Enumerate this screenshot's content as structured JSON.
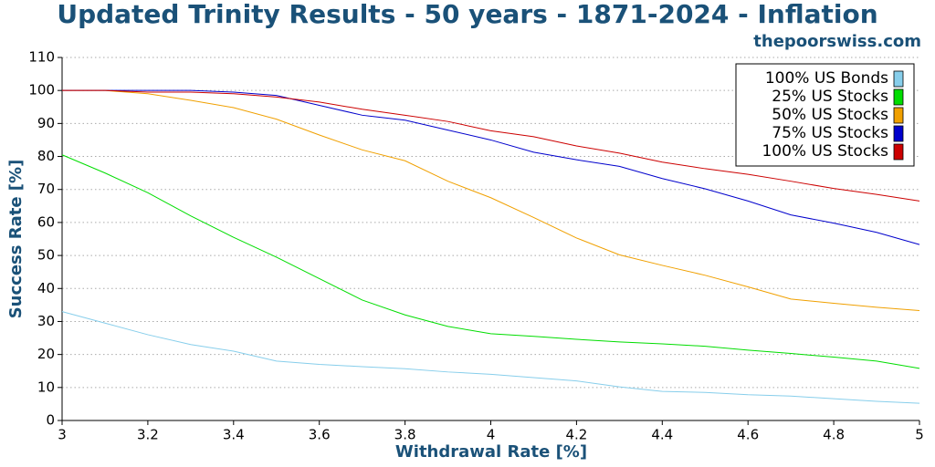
{
  "chart_data": {
    "type": "line",
    "title": "Updated Trinity Results - 50 years - 1871-2024 - Inflation",
    "subtitle": "thepoorswiss.com",
    "x_label": "Withdrawal Rate [%]",
    "y_label": "Success Rate [%]",
    "x": [
      3.0,
      3.1,
      3.2,
      3.3,
      3.4,
      3.5,
      3.6,
      3.7,
      3.8,
      3.9,
      4.0,
      4.1,
      4.2,
      4.3,
      4.4,
      4.5,
      4.6,
      4.7,
      4.8,
      4.9,
      5.0
    ],
    "series": [
      {
        "name": "100% US Bonds",
        "color": "#87ceeb",
        "values": [
          33,
          29.5,
          26,
          23,
          21,
          18,
          17,
          16.3,
          15.7,
          14.7,
          14,
          13,
          12,
          10.2,
          8.8,
          8.5,
          7.8,
          7.4,
          6.6,
          5.8,
          5.2
        ]
      },
      {
        "name": "25% US Stocks",
        "color": "#00dd00",
        "values": [
          80.5,
          75,
          69,
          62,
          55.5,
          49.5,
          43,
          36.5,
          32,
          28.5,
          26.3,
          25.5,
          24.6,
          23.8,
          23.2,
          22.5,
          21.3,
          20.3,
          19.2,
          18,
          15.8
        ]
      },
      {
        "name": "50% US Stocks",
        "color": "#f0a000",
        "values": [
          100,
          100,
          99,
          97,
          94.8,
          91.3,
          86.5,
          82,
          78.7,
          72.5,
          67.5,
          61.5,
          55.3,
          50.2,
          47,
          44,
          40.5,
          36.8,
          35.5,
          34.3,
          33.3
        ]
      },
      {
        "name": "75% US Stocks",
        "color": "#0000cc",
        "values": [
          100,
          100,
          100,
          100,
          99.5,
          98.5,
          95.5,
          92.5,
          91,
          88,
          85,
          81.3,
          79,
          77,
          73.3,
          70.2,
          66.5,
          62.3,
          59.8,
          57,
          53.3
        ]
      },
      {
        "name": "100% US Stocks",
        "color": "#cc0000",
        "values": [
          100,
          100,
          99.5,
          99.5,
          99,
          98,
          96.5,
          94.3,
          92.5,
          90.6,
          87.8,
          86,
          83.2,
          81,
          78.3,
          76.3,
          74.6,
          72.5,
          70.3,
          68.5,
          66.5
        ]
      }
    ],
    "xlim": [
      3,
      5
    ],
    "xticks": [
      3,
      3.2,
      3.4,
      3.6,
      3.8,
      4,
      4.2,
      4.4,
      4.6,
      4.8,
      5
    ],
    "ylim": [
      0,
      110
    ],
    "yticks": [
      0,
      10,
      20,
      30,
      40,
      50,
      60,
      70,
      80,
      90,
      100,
      110
    ],
    "grid": true,
    "legend": "upper right"
  }
}
